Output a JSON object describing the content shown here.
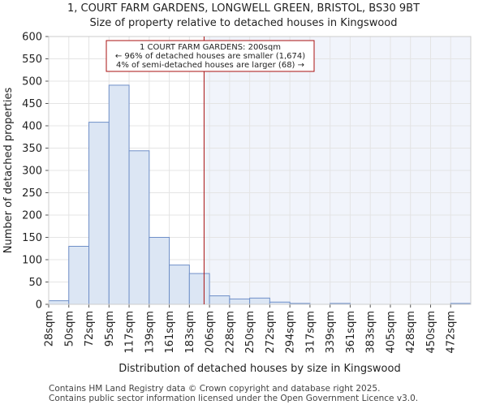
{
  "chart_data": {
    "type": "bar",
    "title_line1": "1, COURT FARM GARDENS, LONGWELL GREEN, BRISTOL, BS30 9BT",
    "title_line2": "Size of property relative to detached houses in Kingswood",
    "xlabel": "Distribution of detached houses by size in Kingswood",
    "ylabel": "Number of detached properties",
    "ylim": [
      0,
      600
    ],
    "yticks": [
      0,
      50,
      100,
      150,
      200,
      250,
      300,
      350,
      400,
      450,
      500,
      550,
      600
    ],
    "categories": [
      "28sqm",
      "50sqm",
      "72sqm",
      "95sqm",
      "117sqm",
      "139sqm",
      "161sqm",
      "183sqm",
      "206sqm",
      "228sqm",
      "250sqm",
      "272sqm",
      "294sqm",
      "317sqm",
      "339sqm",
      "361sqm",
      "383sqm",
      "405sqm",
      "428sqm",
      "450sqm",
      "472sqm"
    ],
    "values": [
      8,
      130,
      408,
      491,
      344,
      150,
      88,
      69,
      19,
      12,
      14,
      5,
      2,
      0,
      2,
      0,
      0,
      0,
      0,
      0,
      2
    ],
    "marker_value": 200,
    "marker_position": 7.73,
    "annotation": {
      "line1": "1 COURT FARM GARDENS: 200sqm",
      "line2": "← 96% of detached houses are smaller (1,674)",
      "line3": "4% of semi-detached houses are larger (68) →"
    },
    "colors": {
      "bar_fill": "#dce6f4",
      "bar_stroke": "#6f8fc8",
      "marker": "#aa1111",
      "highlight_bg": "#f1f4fb",
      "grid": "#e4e4e4"
    }
  },
  "footer": {
    "line1": "Contains HM Land Registry data © Crown copyright and database right 2025.",
    "line2": "Contains public sector information licensed under the Open Government Licence v3.0."
  }
}
